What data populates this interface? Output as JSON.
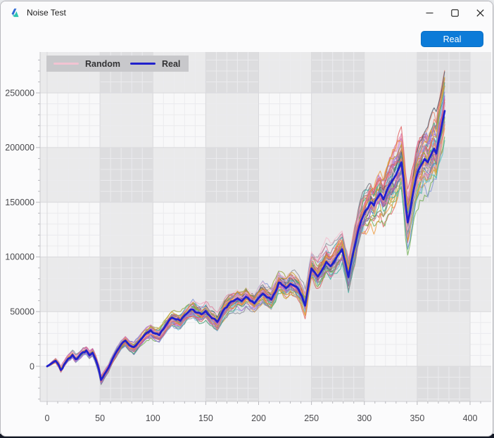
{
  "window": {
    "title": "Noise Test",
    "controls": [
      {
        "name": "minimize"
      },
      {
        "name": "maximize"
      },
      {
        "name": "close"
      }
    ]
  },
  "toolbar": {
    "real_button_label": "Real"
  },
  "legend": {
    "position": "top-left",
    "background": "#c8c8cb",
    "items": [
      {
        "label": "Random",
        "color": "#f2c3d2"
      },
      {
        "label": "Real",
        "color": "#2020cc"
      }
    ]
  },
  "chart_data": {
    "type": "line",
    "title": "",
    "xlabel": "",
    "ylabel": "",
    "x_ticks": [
      0,
      50,
      100,
      150,
      200,
      250,
      300,
      350,
      400
    ],
    "y_ticks": [
      0,
      50000,
      100000,
      150000,
      200000,
      250000
    ],
    "xlim": [
      -6.6,
      420
    ],
    "ylim": [
      -31500,
      287300
    ],
    "grid": {
      "checkerboard_bands": true,
      "band_x_ranges": [
        [
          50,
          100
        ],
        [
          150,
          200
        ],
        [
          250,
          300
        ],
        [
          350,
          400
        ]
      ],
      "band_y_ranges": [
        [
          -31500,
          0
        ],
        [
          50000,
          100000
        ],
        [
          150000,
          200000
        ],
        [
          250000,
          287300
        ]
      ],
      "minor_x_step": 10,
      "minor_y_step": 10000,
      "base_color": "#f8f8f9",
      "band_color": "rgba(138,138,148,0.13)",
      "minor_line_color": "#ebebee",
      "major_line_color": "#d9d9dc",
      "axis_line_color": "#c9c9cd",
      "tick_label_color": "#4a4a4e"
    },
    "series": [
      {
        "name": "Real",
        "color": "#2020cc",
        "width": 2.8,
        "points": [
          [
            0,
            0
          ],
          [
            4,
            2500
          ],
          [
            8,
            5000
          ],
          [
            11,
            1000
          ],
          [
            13,
            -3500
          ],
          [
            16,
            1500
          ],
          [
            20,
            7000
          ],
          [
            24,
            10500
          ],
          [
            27,
            6500
          ],
          [
            30,
            9000
          ],
          [
            34,
            13000
          ],
          [
            37,
            14500
          ],
          [
            40,
            10000
          ],
          [
            43,
            12500
          ],
          [
            46,
            6000
          ],
          [
            49,
            -3000
          ],
          [
            51,
            -12500
          ],
          [
            54,
            -7500
          ],
          [
            58,
            -1500
          ],
          [
            62,
            7000
          ],
          [
            66,
            14000
          ],
          [
            70,
            20000
          ],
          [
            74,
            23500
          ],
          [
            78,
            19000
          ],
          [
            82,
            17500
          ],
          [
            86,
            21500
          ],
          [
            90,
            26000
          ],
          [
            94,
            30500
          ],
          [
            98,
            33000
          ],
          [
            102,
            30000
          ],
          [
            106,
            28500
          ],
          [
            110,
            34000
          ],
          [
            114,
            40000
          ],
          [
            118,
            44500
          ],
          [
            122,
            43000
          ],
          [
            126,
            41500
          ],
          [
            130,
            46500
          ],
          [
            134,
            50000
          ],
          [
            138,
            52000
          ],
          [
            142,
            49000
          ],
          [
            146,
            47500
          ],
          [
            150,
            50500
          ],
          [
            154,
            46000
          ],
          [
            158,
            43500
          ],
          [
            161,
            40500
          ],
          [
            164,
            46000
          ],
          [
            168,
            53000
          ],
          [
            172,
            57500
          ],
          [
            176,
            59500
          ],
          [
            180,
            62000
          ],
          [
            184,
            59500
          ],
          [
            188,
            63500
          ],
          [
            192,
            60000
          ],
          [
            196,
            57500
          ],
          [
            200,
            62500
          ],
          [
            204,
            66500
          ],
          [
            208,
            63000
          ],
          [
            212,
            61000
          ],
          [
            216,
            68000
          ],
          [
            219,
            76500
          ],
          [
            222,
            74500
          ],
          [
            226,
            71500
          ],
          [
            230,
            75500
          ],
          [
            234,
            73500
          ],
          [
            238,
            70000
          ],
          [
            241,
            64000
          ],
          [
            244,
            55500
          ],
          [
            247,
            73000
          ],
          [
            250,
            89500
          ],
          [
            253,
            86000
          ],
          [
            256,
            82000
          ],
          [
            260,
            88000
          ],
          [
            264,
            95500
          ],
          [
            268,
            91500
          ],
          [
            272,
            96500
          ],
          [
            276,
            103000
          ],
          [
            279,
            107000
          ],
          [
            282,
            95000
          ],
          [
            285,
            81500
          ],
          [
            288,
            97000
          ],
          [
            291,
            110000
          ],
          [
            294,
            123000
          ],
          [
            297,
            133000
          ],
          [
            300,
            140000
          ],
          [
            303,
            144000
          ],
          [
            306,
            150000
          ],
          [
            309,
            147000
          ],
          [
            312,
            153500
          ],
          [
            315,
            158000
          ],
          [
            318,
            152500
          ],
          [
            321,
            160000
          ],
          [
            324,
            166000
          ],
          [
            327,
            170500
          ],
          [
            330,
            175000
          ],
          [
            333,
            182000
          ],
          [
            335,
            186500
          ],
          [
            337,
            172000
          ],
          [
            339,
            148000
          ],
          [
            341,
            131500
          ],
          [
            343,
            140000
          ],
          [
            345,
            153000
          ],
          [
            347,
            163000
          ],
          [
            349,
            172500
          ],
          [
            351,
            179000
          ],
          [
            354,
            184500
          ],
          [
            357,
            189500
          ],
          [
            360,
            186500
          ],
          [
            363,
            193000
          ],
          [
            366,
            199000
          ],
          [
            368,
            194500
          ],
          [
            370,
            205000
          ],
          [
            372,
            213500
          ],
          [
            374,
            224000
          ],
          [
            376,
            233500
          ]
        ]
      }
    ],
    "random_series": {
      "name": "Random",
      "count": 48,
      "line_width": 1.1,
      "opacity": 0.8,
      "palette": [
        "#e05c5c",
        "#e8836e",
        "#ef9a3c",
        "#c9a227",
        "#9aa73c",
        "#6fae4f",
        "#3e9e6e",
        "#2fae9e",
        "#52c2cc",
        "#7fb8e0",
        "#8093d8",
        "#5d6db0",
        "#4a5568",
        "#8a8f9a",
        "#6a6f7a",
        "#9a6fd0",
        "#b06fd8",
        "#c45ab8",
        "#d667a0",
        "#e07f9e",
        "#eda0bc",
        "#f2bccd"
      ]
    },
    "legend_entries": [
      "Random",
      "Real"
    ]
  },
  "colors": {
    "accent_button": "#0c7bd8",
    "titlebar_text": "#1b1b1b",
    "window_bg": "#fbfbfc",
    "taskbar_strip": "#161b29",
    "app_icon_blue": "#2e6bd6",
    "app_icon_teal": "#2ec4b0"
  }
}
